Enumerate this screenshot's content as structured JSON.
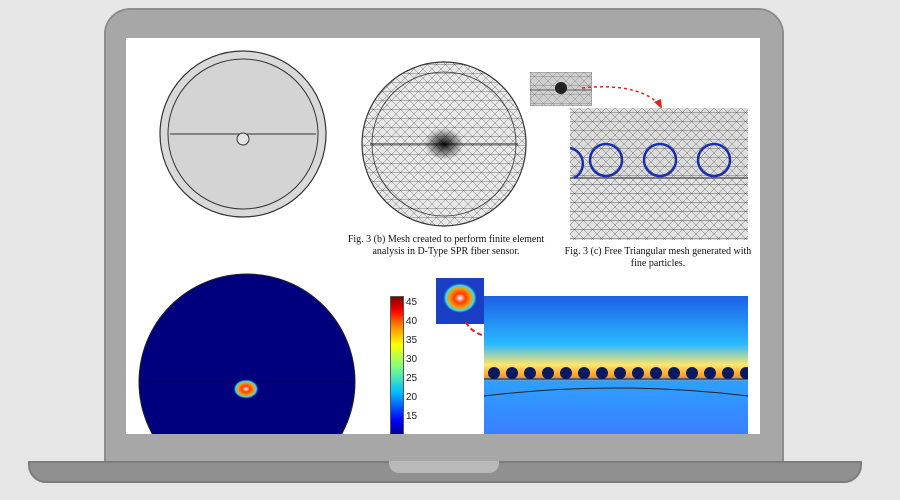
{
  "captions": {
    "fig_b": "Fig. 3 (b) Mesh created to perform finite element analysis in D-Type SPR fiber sensor.",
    "fig_c": "Fig. 3 (c) Free Triangular mesh generated with fine particles."
  },
  "colorbar": {
    "ticks": [
      "45",
      "40",
      "35",
      "30",
      "25",
      "20",
      "15"
    ]
  },
  "colors": {
    "laptop_body": "#a7a7a7",
    "screen_bg": "#ffffff",
    "field_background": "#00007f",
    "arrow": "#e02020"
  },
  "icons": [
    "laptop-frame",
    "fiber-cross-section",
    "mesh-diagram",
    "field-plot",
    "colorbar"
  ]
}
